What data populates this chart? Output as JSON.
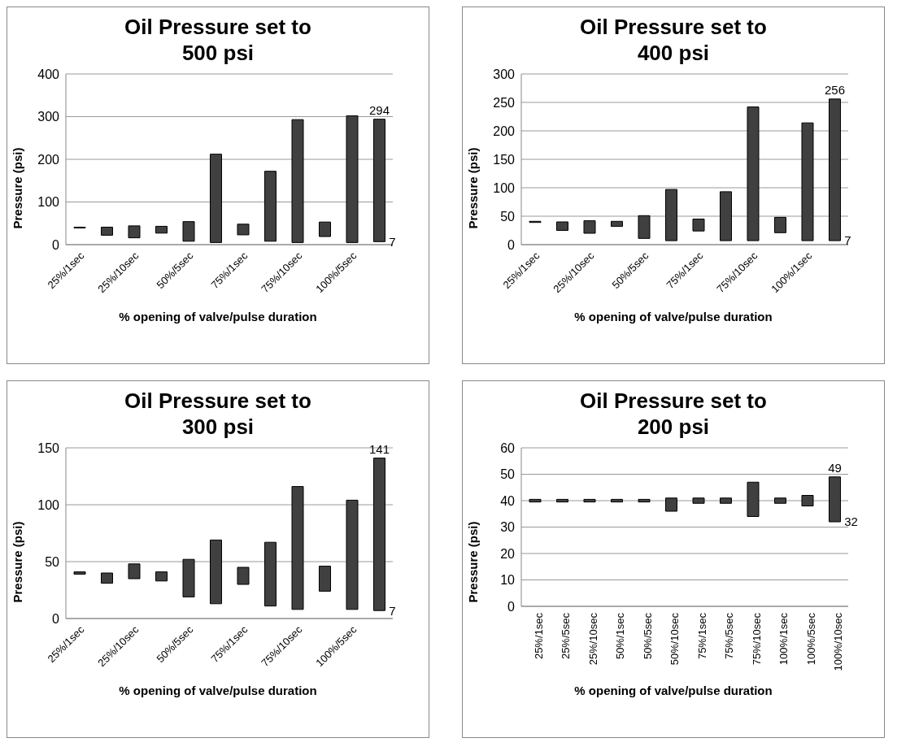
{
  "chart_data": [
    {
      "type": "bar",
      "title": "Oil Pressure set to 500 psi",
      "xlabel": "% opening of valve/pulse duration",
      "ylabel": "Pressure (psi)",
      "categories": [
        "25%/1sec",
        null,
        "25%/10sec",
        null,
        "50%/5sec",
        null,
        "75%/1sec",
        null,
        "75%/10sec",
        null,
        "100%/5sec",
        null
      ],
      "base": [
        39,
        22,
        16,
        27,
        8,
        5,
        23,
        8,
        5,
        19,
        5,
        7
      ],
      "values": [
        2,
        19,
        28,
        16,
        46,
        207,
        25,
        164,
        288,
        34,
        297,
        287
      ],
      "color": "#404040",
      "ylim": [
        0,
        400
      ],
      "yticks": [
        0,
        100,
        200,
        300,
        400
      ],
      "grid": "y",
      "legend": false,
      "value_labels": [
        null,
        null,
        null,
        null,
        null,
        null,
        null,
        null,
        null,
        null,
        null,
        "294"
      ],
      "annotations": [
        "7"
      ]
    },
    {
      "type": "bar",
      "title": "Oil Pressure set to 400 psi",
      "xlabel": "% opening of valve/pulse duration",
      "ylabel": "Pressure (psi)",
      "categories": [
        "25%/1sec",
        null,
        "25%/10sec",
        null,
        "50%/5sec",
        null,
        "75%/1sec",
        null,
        "75%/10sec",
        null,
        "100%/1sec",
        null
      ],
      "base": [
        39,
        25,
        20,
        32,
        11,
        7,
        24,
        7,
        7,
        21,
        7,
        7
      ],
      "values": [
        2,
        15,
        22,
        9,
        40,
        90,
        21,
        86,
        235,
        27,
        207,
        249
      ],
      "color": "#404040",
      "ylim": [
        0,
        300
      ],
      "yticks": [
        0,
        50,
        100,
        150,
        200,
        250,
        300
      ],
      "grid": "y",
      "legend": false,
      "value_labels": [
        null,
        null,
        null,
        null,
        null,
        null,
        null,
        null,
        null,
        null,
        null,
        "256"
      ],
      "annotations": [
        "7"
      ]
    },
    {
      "type": "bar",
      "title": "Oil Pressure set to 300 psi",
      "xlabel": "% opening of valve/pulse duration",
      "ylabel": "Pressure (psi)",
      "categories": [
        "25%/1sec",
        null,
        "25%/10sec",
        null,
        "50%/5sec",
        null,
        "75%/1sec",
        null,
        "75%/10sec",
        null,
        "100%/5sec",
        null
      ],
      "base": [
        39,
        31,
        35,
        33,
        19,
        13,
        30,
        11,
        8,
        24,
        8,
        7
      ],
      "values": [
        2,
        9,
        13,
        8,
        33,
        56,
        15,
        56,
        108,
        22,
        96,
        134
      ],
      "color": "#404040",
      "ylim": [
        0,
        150
      ],
      "yticks": [
        0,
        50,
        100,
        150
      ],
      "grid": "y",
      "legend": false,
      "value_labels": [
        null,
        null,
        null,
        null,
        null,
        null,
        null,
        null,
        null,
        null,
        null,
        "141"
      ],
      "annotations": [
        "7"
      ]
    },
    {
      "type": "bar",
      "title": "Oil Pressure set to 200 psi",
      "xlabel": "% opening of valve/pulse duration",
      "ylabel": "Pressure (psi)",
      "categories": [
        "25%/1sec",
        "25%/5sec",
        "25%/10sec",
        "50%/1sec",
        "50%/5sec",
        "50%/10sec",
        "75%/1sec",
        "75%/5sec",
        "75%/10sec",
        "100%/1sec",
        "100%/5sec",
        "100%/10sec"
      ],
      "base": [
        39.5,
        39.5,
        39.5,
        39.5,
        39.5,
        36,
        39,
        39,
        34,
        39,
        38,
        32
      ],
      "values": [
        1,
        1,
        1,
        1,
        1,
        5,
        2,
        2,
        13,
        2,
        4,
        17
      ],
      "color": "#404040",
      "ylim": [
        0,
        60
      ],
      "yticks": [
        0,
        10,
        20,
        30,
        40,
        50,
        60
      ],
      "grid": "y",
      "legend": false,
      "value_labels": [
        null,
        null,
        null,
        null,
        null,
        null,
        null,
        null,
        null,
        null,
        null,
        "49"
      ],
      "annotations": [
        "32"
      ]
    }
  ]
}
